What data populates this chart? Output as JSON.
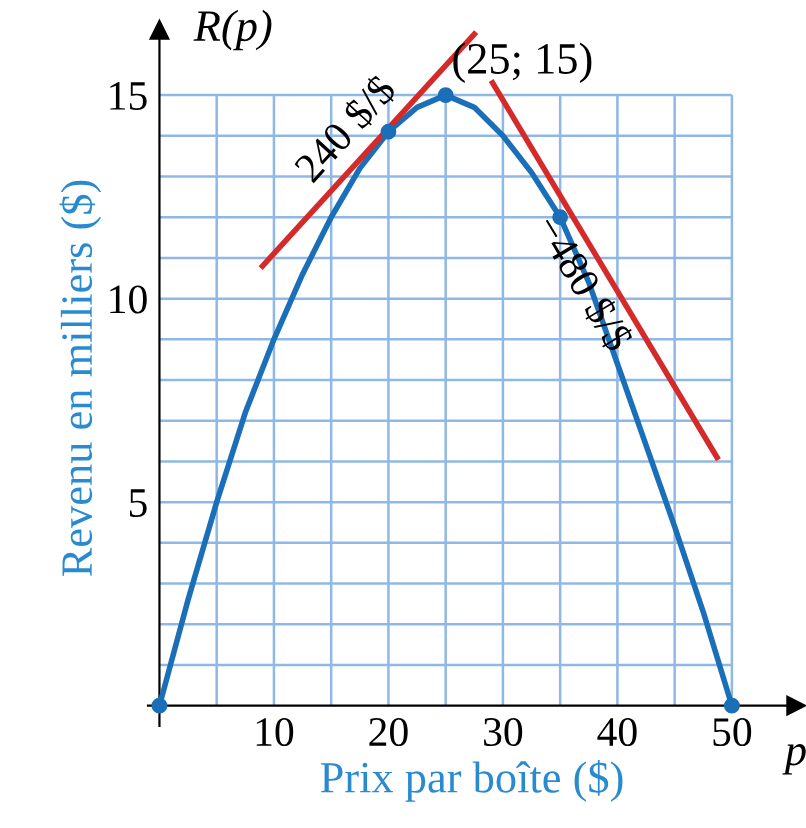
{
  "chart_data": {
    "type": "line",
    "xlabel": "Prix par boîte ($)",
    "ylabel": "Revenu en milliers ($)",
    "series": [
      {
        "color": "#1a6fb8",
        "marker": "none",
        "x": [
          0,
          2.5,
          5,
          7.5,
          10,
          12.5,
          15,
          17.5,
          20,
          22.5,
          25,
          27.5,
          30,
          32.5,
          35,
          37.5,
          40,
          42.5,
          45,
          47.5,
          50
        ],
        "values": [
          0,
          2.6,
          5.0,
          7.2,
          9.0,
          10.6,
          12.0,
          13.2,
          14.1,
          14.7,
          15,
          14.7,
          14.0,
          13.1,
          12.0,
          10.4,
          8.4,
          6.4,
          4.4,
          2.3,
          0
        ]
      },
      {
        "type": "scatter",
        "color": "#1a6fb8",
        "marker": "circle",
        "x": [
          0,
          20,
          25,
          35,
          50
        ],
        "values": [
          0,
          14.1,
          15,
          12.0,
          0
        ]
      },
      {
        "type": "line",
        "color": "#d42a2a",
        "marker": "none",
        "x": [
          9,
          27.5
        ],
        "values": [
          10.8,
          16.5
        ]
      },
      {
        "type": "line",
        "color": "#d42a2a",
        "marker": "none",
        "x": [
          29.1,
          48.7
        ],
        "values": [
          15.3,
          6.1
        ]
      }
    ],
    "annotations": [
      "R(p)",
      "p",
      {
        "text": "(25; 15)",
        "x": 25,
        "y": 15
      },
      "240 $/$",
      "−480 $/$"
    ],
    "xlim": [
      -1,
      55.6
    ],
    "ylim": [
      -0.5,
      16.6
    ],
    "xticks": [
      {
        "value": 5,
        "label": null
      },
      10,
      {
        "value": 15,
        "label": null
      },
      20,
      {
        "value": 25,
        "label": null
      },
      30,
      {
        "value": 35,
        "label": null
      },
      40,
      {
        "value": 45,
        "label": null
      },
      50
    ],
    "yticks": [
      {
        "value": 1,
        "label": null
      },
      {
        "value": 2,
        "label": null
      },
      {
        "value": 3,
        "label": null
      },
      {
        "value": 4,
        "label": null
      },
      5,
      {
        "value": 6,
        "label": null
      },
      {
        "value": 7,
        "label": null
      },
      {
        "value": 8,
        "label": null
      },
      {
        "value": 9,
        "label": null
      },
      10,
      {
        "value": 11,
        "label": null
      },
      {
        "value": 12,
        "label": null
      },
      {
        "value": 13,
        "label": null
      },
      {
        "value": 14,
        "label": null
      },
      15
    ],
    "grid": true
  }
}
